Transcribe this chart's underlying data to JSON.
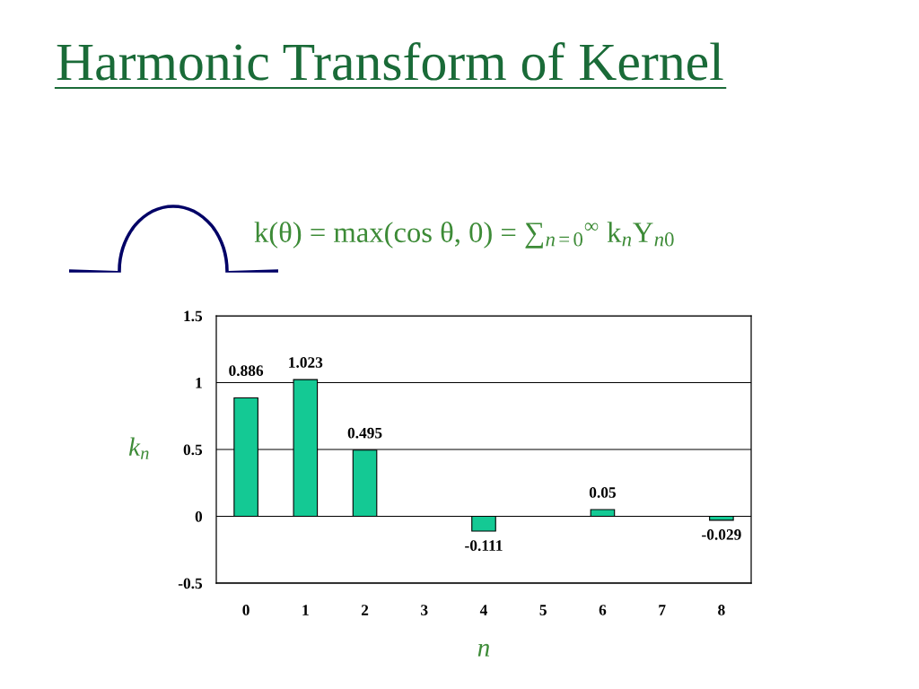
{
  "chart_data": {
    "type": "bar",
    "title": "Harmonic Transform of Kernel",
    "annotations": [
      "k(θ) = max(cos θ, 0) = ∑$_{n=0}$$^{∞}$ k$_{n}$Y$_{n0}$"
    ],
    "categories": [
      "0",
      "1",
      "2",
      "3",
      "4",
      "5",
      "6",
      "7",
      "8"
    ],
    "values": [
      0.886,
      1.023,
      0.495,
      null,
      -0.111,
      null,
      0.05,
      null,
      -0.029
    ],
    "value_labels": [
      "0.886",
      "1.023",
      "0.495",
      null,
      "-0.111",
      null,
      "0.05",
      null,
      "-0.029"
    ],
    "color": "#14c994",
    "ylim": [
      -0.5,
      1.5
    ],
    "yticks": [
      -0.5,
      0,
      0.5,
      1,
      1.5
    ],
    "grid": "y",
    "xlabel": "n",
    "ylabel": "k$_{n}$"
  }
}
